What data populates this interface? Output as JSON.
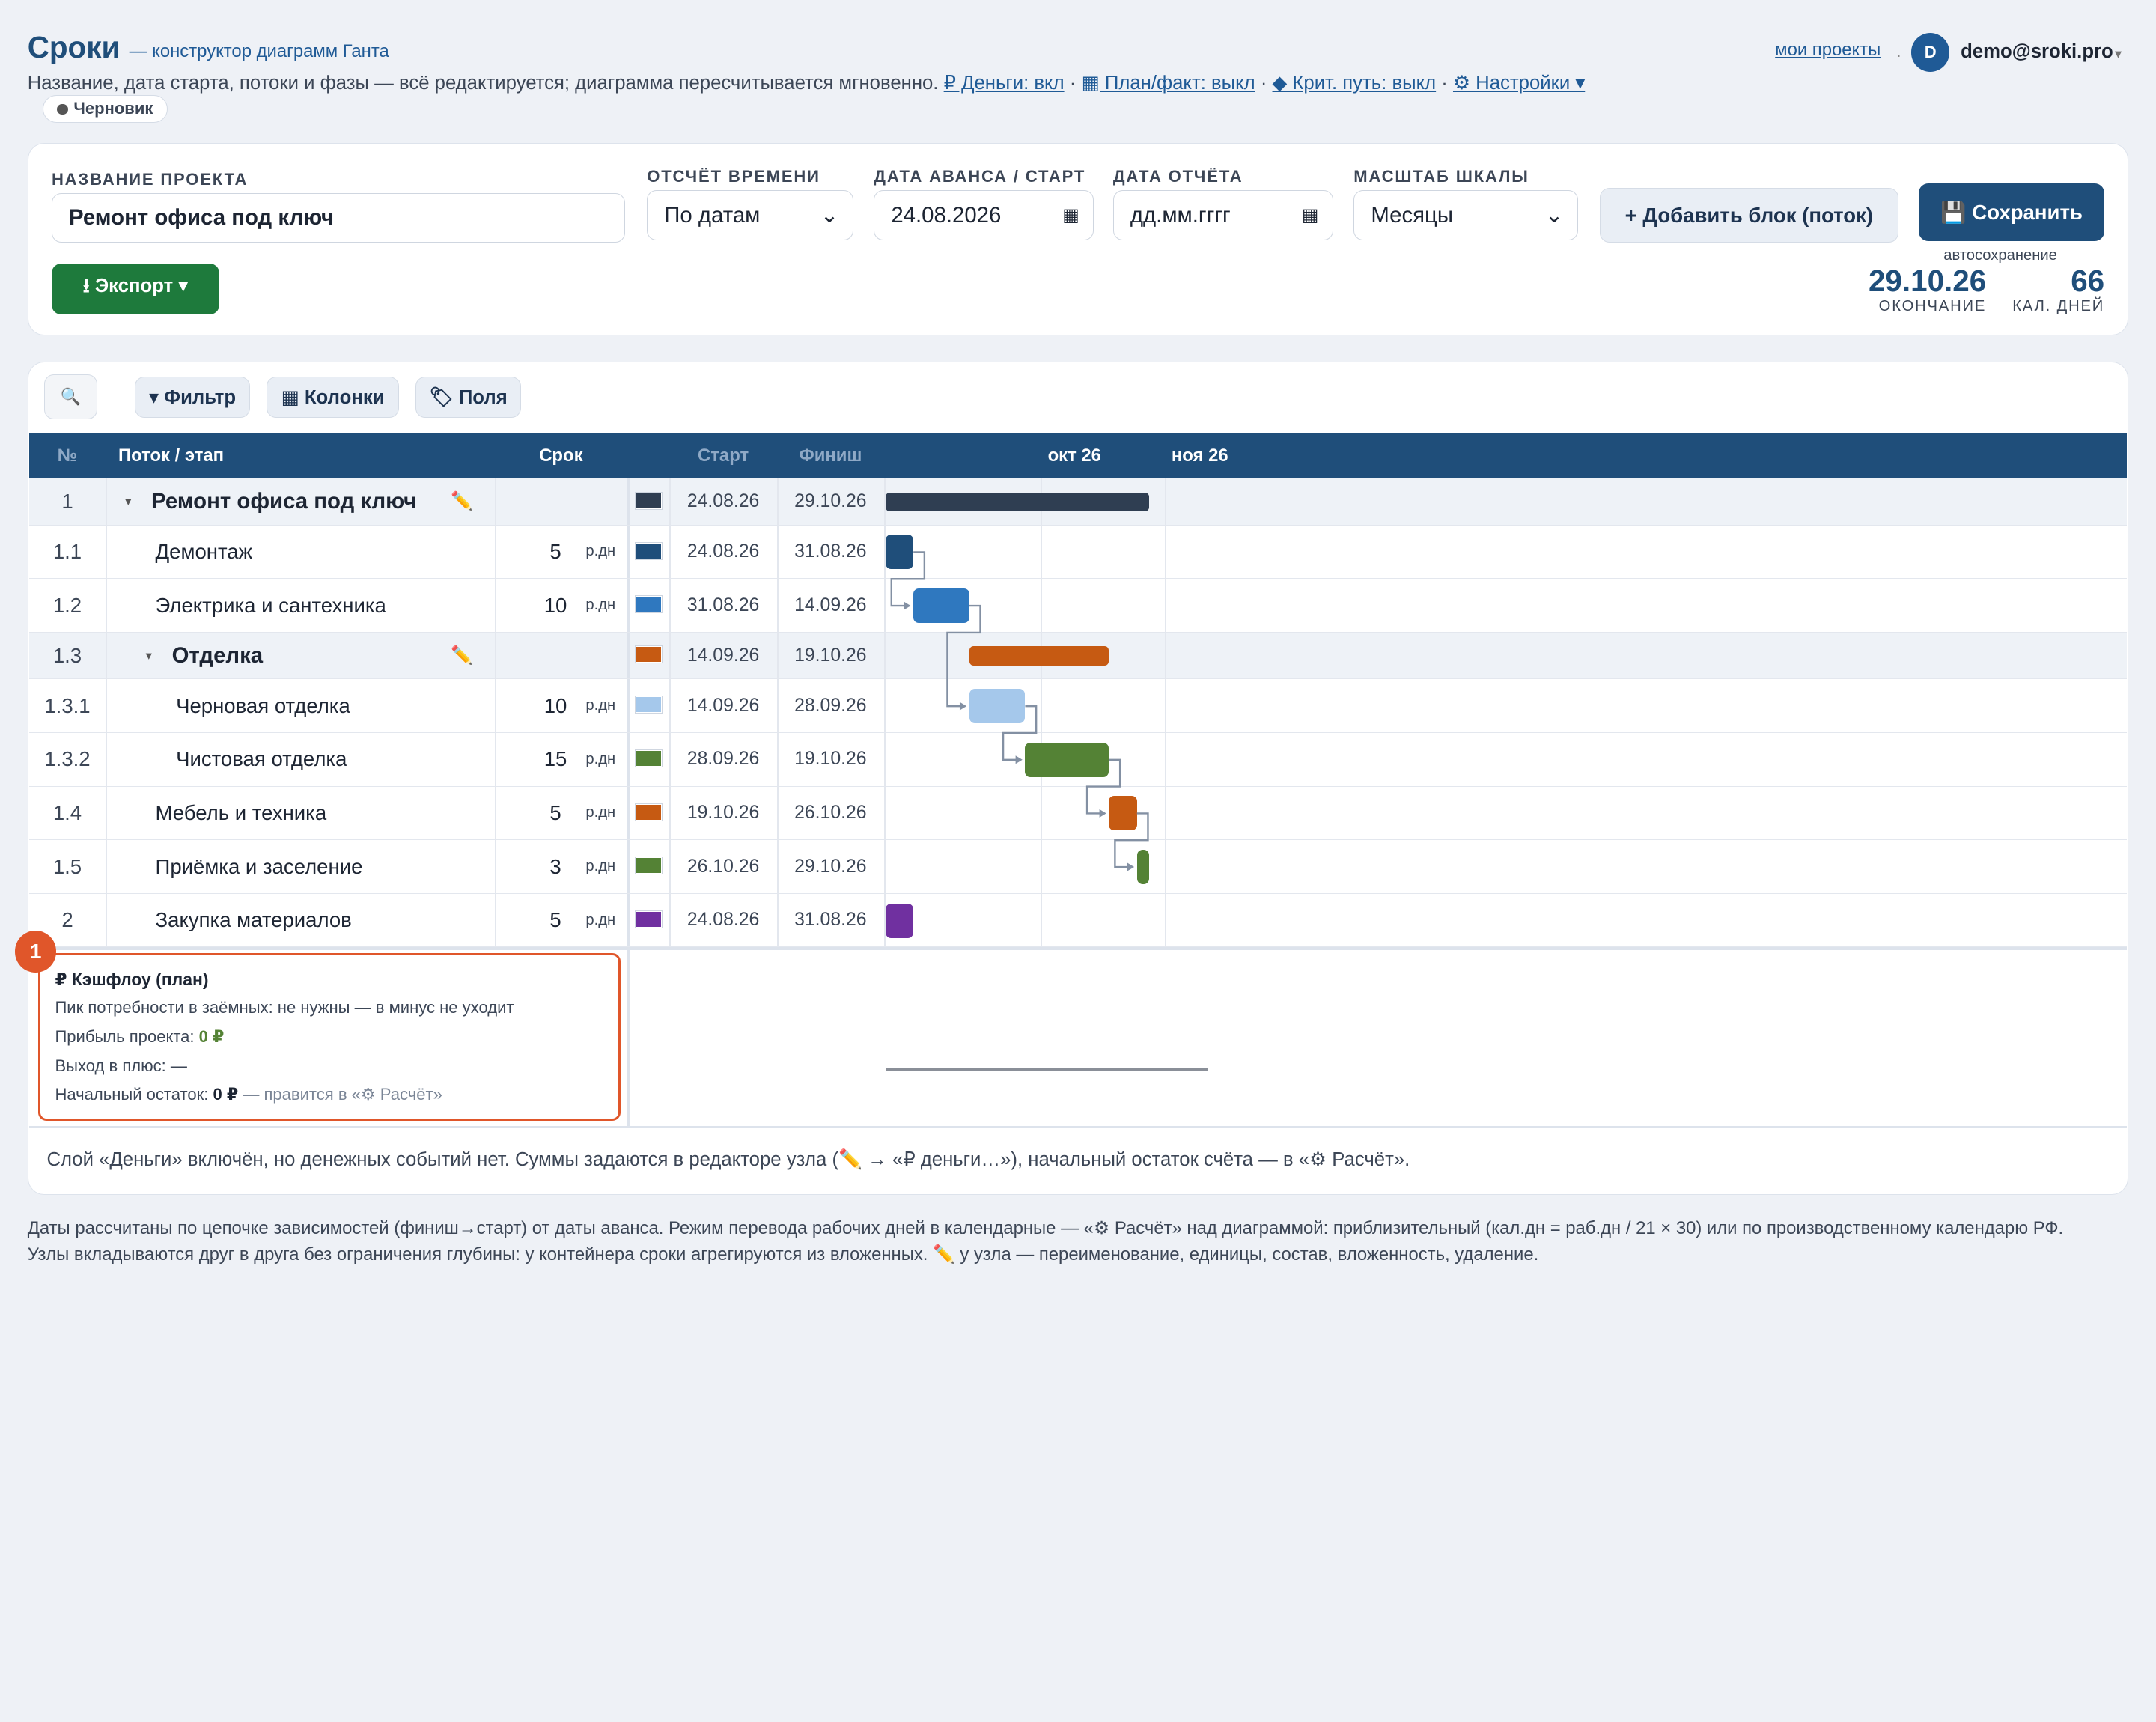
{
  "header": {
    "title": "Сроки",
    "subtitle": "— конструктор диаграмм Ганта",
    "description": "Название, дата старта, потоки и фазы — всё редактируется; диаграмма пересчитывается мгновенно.",
    "toggles": [
      "₽ Деньги: вкл",
      "▦ План/факт: выкл",
      "◆ Крит. путь: выкл",
      "⚙ Настройки ▾"
    ],
    "status": "Черновик",
    "nav_link": "мои проекты",
    "avatar": "D",
    "user": "demo@sroki.pro"
  },
  "form": {
    "project_label": "НАЗВАНИЕ ПРОЕКТА",
    "project_name": "Ремонт офиса под ключ",
    "time_label": "ОТСЧЁТ ВРЕМЕНИ",
    "time_value": "По датам",
    "start_label": "ДАТА АВАНСА / СТАРТ",
    "start_value": "24.08.2026",
    "report_label": "ДАТА ОТЧЁТА",
    "report_value": "дд.мм.гггг",
    "scale_label": "МАСШТАБ ШКАЛЫ",
    "scale_value": "Месяцы",
    "add_button": "+ Добавить блок (поток)",
    "save_button": "💾 Сохранить",
    "autosave": "автосохранение",
    "export_button": "⭳ Экспорт ▾",
    "end_value": "29.10.26",
    "end_label": "ОКОНЧАНИЕ",
    "days_value": 66,
    "days_label": "КАЛ. ДНЕЙ"
  },
  "toolbar": {
    "search": "🔍",
    "filter": "▾ Фильтр",
    "columns": "▦ Колонки",
    "fields": "🏷 Поля"
  },
  "table": {
    "columns": [
      "№",
      "Поток / этап",
      "Срок",
      "Старт",
      "Финиш"
    ],
    "months": [
      "окт 26",
      "ноя 26"
    ],
    "rows": [
      {
        "num": "1",
        "name": "Ремонт офиса под ключ",
        "level": 0,
        "group": true,
        "color": "#2f3e52",
        "start": "24.08.26",
        "finish": "29.10.26"
      },
      {
        "num": "1.1",
        "name": "Демонтаж",
        "level": 1,
        "duration": 5,
        "unit": "р.дн",
        "color": "#1f4e7a",
        "start": "24.08.26",
        "finish": "31.08.26"
      },
      {
        "num": "1.2",
        "name": "Электрика и сантехника",
        "level": 1,
        "duration": 10,
        "unit": "р.дн",
        "color": "#2f78bf",
        "start": "31.08.26",
        "finish": "14.09.26"
      },
      {
        "num": "1.3",
        "name": "Отделка",
        "level": 1,
        "group": true,
        "color": "#c65a12",
        "start": "14.09.26",
        "finish": "19.10.26"
      },
      {
        "num": "1.3.1",
        "name": "Черновая отделка",
        "level": 2,
        "duration": 10,
        "unit": "р.дн",
        "color": "#a5c8eb",
        "start": "14.09.26",
        "finish": "28.09.26"
      },
      {
        "num": "1.3.2",
        "name": "Чистовая отделка",
        "level": 2,
        "duration": 15,
        "unit": "р.дн",
        "color": "#548235",
        "start": "28.09.26",
        "finish": "19.10.26"
      },
      {
        "num": "1.4",
        "name": "Мебель и техника",
        "level": 1,
        "duration": 5,
        "unit": "р.дн",
        "color": "#c65a12",
        "start": "19.10.26",
        "finish": "26.10.26"
      },
      {
        "num": "1.5",
        "name": "Приёмка и заселение",
        "level": 1,
        "duration": 3,
        "unit": "р.дн",
        "color": "#548235",
        "start": "26.10.26",
        "finish": "29.10.26"
      },
      {
        "num": "2",
        "name": "Закупка материалов",
        "level": 1,
        "duration": 5,
        "unit": "р.дн",
        "color": "#7030a0",
        "start": "24.08.26",
        "finish": "31.08.26"
      }
    ]
  },
  "cashflow": {
    "badge": "1",
    "title": "₽ Кэшфлоу (план)",
    "peak": "Пик потребности в заёмных: не нужны — в минус не уходит",
    "profit_label": "Прибыль проекта:",
    "profit_value": "0 ₽",
    "breakeven": "Выход в плюс: —",
    "balance_label": "Начальный остаток:",
    "balance_value": "0 ₽",
    "balance_note": "— правится в «⚙ Расчёт»"
  },
  "note": "Слой «Деньги» включён, но денежных событий нет. Суммы задаются в редакторе узла (✏️ → «₽ деньги…»), начальный остаток счёта — в «⚙ Расчёт».",
  "footer": "Даты рассчитаны по цепочке зависимостей (финиш→старт) от даты аванса. Режим перевода рабочих дней в календарные — «⚙ Расчёт» над диаграммой: приблизительный (кал.дн = раб.дн / 21 × 30) или по производственному календарю РФ. Узлы вкладываются друг в друга без ограничения глубины: у контейнера сроки агрегируются из вложенных. ✏️ у узла — переименование, единицы, состав, вложенность, удаление."
}
